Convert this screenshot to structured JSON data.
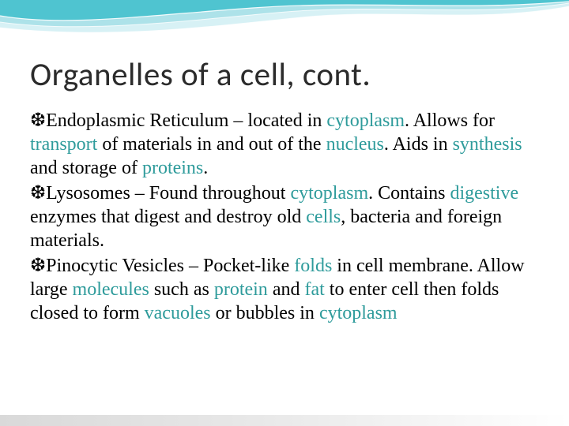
{
  "slide": {
    "title": "Organelles of a cell, cont.",
    "title_fontsize": 41,
    "title_color": "#2b2b2b",
    "body_fontsize": 24,
    "body_color": "#000000",
    "accent_color": "#2e9b9b",
    "bullet_glyph": "❆",
    "bullets": [
      {
        "runs": [
          {
            "t": "Endoplasmic Reticulum – located in ",
            "hl": false
          },
          {
            "t": "cytoplasm",
            "hl": true
          },
          {
            "t": ". Allows for ",
            "hl": false
          },
          {
            "t": "transport",
            "hl": true
          },
          {
            "t": " of materials in and out of the ",
            "hl": false
          },
          {
            "t": "nucleus",
            "hl": true
          },
          {
            "t": ". Aids in ",
            "hl": false
          },
          {
            "t": "synthesis",
            "hl": true
          },
          {
            "t": " and storage of ",
            "hl": false
          },
          {
            "t": "proteins",
            "hl": true
          },
          {
            "t": ".",
            "hl": false
          }
        ]
      },
      {
        "runs": [
          {
            "t": "Lysosomes – Found throughout ",
            "hl": false
          },
          {
            "t": "cytoplasm",
            "hl": true
          },
          {
            "t": ". Contains ",
            "hl": false
          },
          {
            "t": "digestive",
            "hl": true
          },
          {
            "t": " enzymes that digest and destroy old ",
            "hl": false
          },
          {
            "t": "cells",
            "hl": true
          },
          {
            "t": ", bacteria and foreign materials.",
            "hl": false
          }
        ]
      },
      {
        "runs": [
          {
            "t": "Pinocytic Vesicles – Pocket-like ",
            "hl": false
          },
          {
            "t": "folds",
            "hl": true
          },
          {
            "t": " in cell membrane. Allow large ",
            "hl": false
          },
          {
            "t": "molecules",
            "hl": true
          },
          {
            "t": " such as ",
            "hl": false
          },
          {
            "t": "protein",
            "hl": true
          },
          {
            "t": " and ",
            "hl": false
          },
          {
            "t": "fat",
            "hl": true
          },
          {
            "t": " to enter cell then folds closed to form ",
            "hl": false
          },
          {
            "t": "vacuoles",
            "hl": true
          },
          {
            "t": " or bubbles in ",
            "hl": false
          },
          {
            "t": "cytoplasm",
            "hl": true
          }
        ]
      }
    ],
    "wave": {
      "color1": "#4fc4d0",
      "color2": "#a8e0e8",
      "color3": "#d0eef3",
      "stroke": "#ffffff"
    }
  }
}
